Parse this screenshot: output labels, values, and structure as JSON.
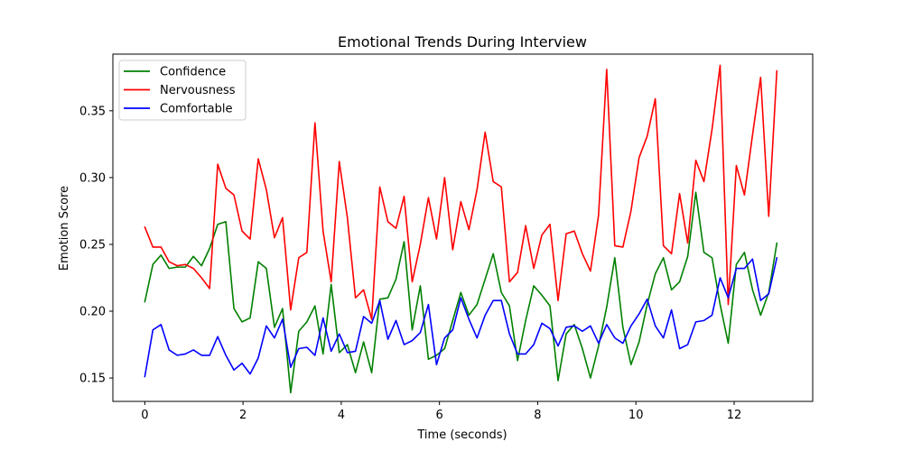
{
  "chart_data": {
    "type": "line",
    "title": "Emotional Trends During Interview",
    "xlabel": "Time (seconds)",
    "ylabel": "Emotion Score",
    "xlim": [
      -0.65,
      13.6
    ],
    "ylim": [
      0.1325,
      0.3924
    ],
    "xticks": [
      0,
      2,
      4,
      6,
      8,
      10,
      12
    ],
    "xtick_labels": [
      "0",
      "2",
      "4",
      "6",
      "8",
      "10",
      "12"
    ],
    "yticks": [
      0.15,
      0.2,
      0.25,
      0.3,
      0.35
    ],
    "ytick_labels": [
      "0.15",
      "0.20",
      "0.25",
      "0.30",
      "0.35"
    ],
    "grid": false,
    "legend_position": "top-left",
    "series": [
      {
        "name": "Confidence",
        "color": "#008000",
        "x": [
          0,
          0.165,
          0.33,
          0.495,
          0.66,
          0.825,
          0.99,
          1.155,
          1.32,
          1.485,
          1.65,
          1.815,
          1.98,
          2.145,
          2.31,
          2.475,
          2.64,
          2.805,
          2.97,
          3.135,
          3.3,
          3.465,
          3.63,
          3.795,
          3.96,
          4.125,
          4.29,
          4.455,
          4.62,
          4.785,
          4.95,
          5.115,
          5.28,
          5.445,
          5.61,
          5.775,
          5.94,
          6.105,
          6.27,
          6.435,
          6.6,
          6.765,
          6.93,
          7.095,
          7.26,
          7.425,
          7.59,
          7.755,
          7.92,
          8.085,
          8.25,
          8.415,
          8.58,
          8.745,
          8.91,
          9.075,
          9.24,
          9.405,
          9.57,
          9.735,
          9.9,
          10.065,
          10.23,
          10.395,
          10.56,
          10.725,
          10.89,
          11.055,
          11.22,
          11.385,
          11.55,
          11.715,
          11.88,
          12.045,
          12.21,
          12.375,
          12.54,
          12.705,
          12.87
        ],
        "y": [
          0.207,
          0.235,
          0.242,
          0.232,
          0.233,
          0.233,
          0.241,
          0.234,
          0.247,
          0.265,
          0.267,
          0.202,
          0.192,
          0.195,
          0.237,
          0.232,
          0.188,
          0.202,
          0.139,
          0.185,
          0.192,
          0.204,
          0.168,
          0.22,
          0.169,
          0.175,
          0.154,
          0.177,
          0.154,
          0.209,
          0.21,
          0.224,
          0.252,
          0.186,
          0.219,
          0.164,
          0.167,
          0.172,
          0.193,
          0.214,
          0.197,
          0.205,
          0.224,
          0.243,
          0.214,
          0.204,
          0.163,
          0.193,
          0.219,
          0.212,
          0.204,
          0.148,
          0.183,
          0.19,
          0.172,
          0.15,
          0.174,
          0.203,
          0.24,
          0.188,
          0.16,
          0.177,
          0.205,
          0.228,
          0.24,
          0.216,
          0.222,
          0.241,
          0.289,
          0.244,
          0.24,
          0.205,
          0.176,
          0.235,
          0.244,
          0.216,
          0.197,
          0.214,
          0.251
        ]
      },
      {
        "name": "Nervousness",
        "color": "#ff0000",
        "x": [
          0,
          0.165,
          0.33,
          0.495,
          0.66,
          0.825,
          0.99,
          1.155,
          1.32,
          1.485,
          1.65,
          1.815,
          1.98,
          2.145,
          2.31,
          2.475,
          2.64,
          2.805,
          2.97,
          3.135,
          3.3,
          3.465,
          3.63,
          3.795,
          3.96,
          4.125,
          4.29,
          4.455,
          4.62,
          4.785,
          4.95,
          5.115,
          5.28,
          5.445,
          5.61,
          5.775,
          5.94,
          6.105,
          6.27,
          6.435,
          6.6,
          6.765,
          6.93,
          7.095,
          7.26,
          7.425,
          7.59,
          7.755,
          7.92,
          8.085,
          8.25,
          8.415,
          8.58,
          8.745,
          8.91,
          9.075,
          9.24,
          9.405,
          9.57,
          9.735,
          9.9,
          10.065,
          10.23,
          10.395,
          10.56,
          10.725,
          10.89,
          11.055,
          11.22,
          11.385,
          11.55,
          11.715,
          11.88,
          12.045,
          12.21,
          12.375,
          12.54,
          12.705,
          12.87
        ],
        "y": [
          0.263,
          0.248,
          0.248,
          0.237,
          0.234,
          0.235,
          0.232,
          0.225,
          0.217,
          0.31,
          0.292,
          0.287,
          0.26,
          0.254,
          0.314,
          0.291,
          0.255,
          0.27,
          0.201,
          0.24,
          0.244,
          0.341,
          0.26,
          0.222,
          0.312,
          0.27,
          0.21,
          0.216,
          0.194,
          0.293,
          0.267,
          0.262,
          0.286,
          0.222,
          0.25,
          0.285,
          0.254,
          0.3,
          0.246,
          0.282,
          0.261,
          0.291,
          0.334,
          0.297,
          0.293,
          0.222,
          0.229,
          0.264,
          0.232,
          0.257,
          0.265,
          0.208,
          0.258,
          0.26,
          0.243,
          0.23,
          0.272,
          0.381,
          0.249,
          0.248,
          0.275,
          0.315,
          0.331,
          0.359,
          0.249,
          0.243,
          0.288,
          0.251,
          0.313,
          0.297,
          0.336,
          0.384,
          0.205,
          0.309,
          0.287,
          0.332,
          0.375,
          0.271,
          0.38
        ]
      },
      {
        "name": "Comfortable",
        "color": "#0000ff",
        "x": [
          0,
          0.165,
          0.33,
          0.495,
          0.66,
          0.825,
          0.99,
          1.155,
          1.32,
          1.485,
          1.65,
          1.815,
          1.98,
          2.145,
          2.31,
          2.475,
          2.64,
          2.805,
          2.97,
          3.135,
          3.3,
          3.465,
          3.63,
          3.795,
          3.96,
          4.125,
          4.29,
          4.455,
          4.62,
          4.785,
          4.95,
          5.115,
          5.28,
          5.445,
          5.61,
          5.775,
          5.94,
          6.105,
          6.27,
          6.435,
          6.6,
          6.765,
          6.93,
          7.095,
          7.26,
          7.425,
          7.59,
          7.755,
          7.92,
          8.085,
          8.25,
          8.415,
          8.58,
          8.745,
          8.91,
          9.075,
          9.24,
          9.405,
          9.57,
          9.735,
          9.9,
          10.065,
          10.23,
          10.395,
          10.56,
          10.725,
          10.89,
          11.055,
          11.22,
          11.385,
          11.55,
          11.715,
          11.88,
          12.045,
          12.21,
          12.375,
          12.54,
          12.705,
          12.87
        ],
        "y": [
          0.151,
          0.186,
          0.19,
          0.171,
          0.167,
          0.168,
          0.171,
          0.167,
          0.167,
          0.181,
          0.167,
          0.156,
          0.161,
          0.153,
          0.165,
          0.189,
          0.18,
          0.194,
          0.158,
          0.172,
          0.173,
          0.167,
          0.195,
          0.17,
          0.183,
          0.169,
          0.17,
          0.196,
          0.191,
          0.208,
          0.179,
          0.193,
          0.175,
          0.178,
          0.184,
          0.205,
          0.16,
          0.18,
          0.186,
          0.21,
          0.194,
          0.18,
          0.197,
          0.208,
          0.208,
          0.183,
          0.168,
          0.168,
          0.175,
          0.191,
          0.187,
          0.174,
          0.188,
          0.189,
          0.185,
          0.189,
          0.176,
          0.19,
          0.18,
          0.176,
          0.189,
          0.198,
          0.209,
          0.189,
          0.18,
          0.201,
          0.172,
          0.175,
          0.192,
          0.193,
          0.197,
          0.225,
          0.21,
          0.232,
          0.232,
          0.239,
          0.208,
          0.213,
          0.24
        ]
      }
    ]
  }
}
